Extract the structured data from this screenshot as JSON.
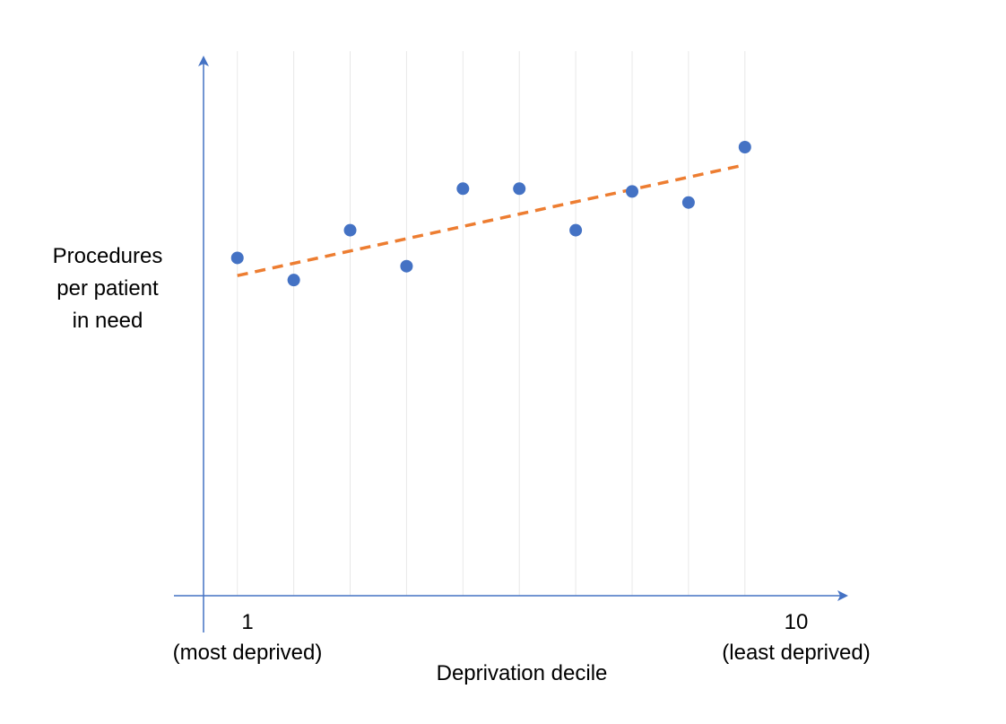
{
  "chart_data": {
    "type": "scatter",
    "title": "",
    "ylabel_lines": [
      "Procedures",
      "per patient",
      "in need"
    ],
    "xlabel": "Deprivation decile",
    "x_tick_first": {
      "value": "1",
      "caption": "(most deprived)"
    },
    "x_tick_last": {
      "value": "10",
      "caption": "(least deprived)"
    },
    "x": [
      1,
      2,
      3,
      4,
      5,
      6,
      7,
      8,
      9,
      10
    ],
    "y": [
      6.1,
      5.7,
      6.6,
      5.95,
      7.35,
      7.35,
      6.6,
      7.3,
      7.1,
      8.1
    ],
    "trendline": {
      "x": [
        1,
        10
      ],
      "y": [
        5.78,
        7.78
      ],
      "style": "dashed"
    },
    "xlim": [
      0.4,
      11.8
    ],
    "ylim": [
      0,
      9.72
    ],
    "grid": "vertical",
    "colors": {
      "points": "#4472C4",
      "trendline": "#ED7D31",
      "axes": "#4472C4",
      "grid": "#E8E8E8"
    }
  }
}
